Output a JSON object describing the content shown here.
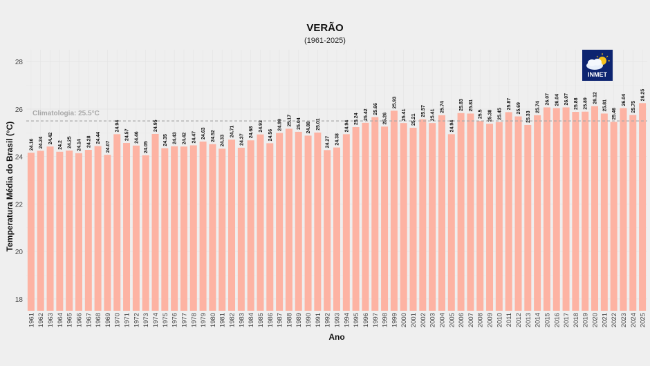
{
  "chart_data": {
    "type": "bar",
    "title": "VERÃO",
    "subtitle": "(1961-2025)",
    "xlabel": "Ano",
    "ylabel": "Temperatura Média do Brasil (°C)",
    "ylim": [
      17.5,
      28.5
    ],
    "yticks": [
      18,
      20,
      22,
      24,
      26,
      28
    ],
    "grid": true,
    "bar_color": "#fdb3a3",
    "reference_line": {
      "value": 25.5,
      "label": "Climatologia: 25.5°C",
      "color": "#a8a8a8"
    },
    "categories": [
      "1961",
      "1962",
      "1963",
      "1964",
      "1965",
      "1966",
      "1967",
      "1968",
      "1969",
      "1970",
      "1971",
      "1972",
      "1973",
      "1974",
      "1975",
      "1976",
      "1977",
      "1978",
      "1979",
      "1980",
      "1981",
      "1982",
      "1983",
      "1984",
      "1985",
      "1986",
      "1987",
      "1988",
      "1989",
      "1990",
      "1991",
      "1992",
      "1993",
      "1994",
      "1995",
      "1996",
      "1997",
      "1998",
      "1999",
      "2000",
      "2001",
      "2002",
      "2003",
      "2004",
      "2005",
      "2006",
      "2007",
      "2008",
      "2009",
      "2010",
      "2011",
      "2012",
      "2013",
      "2014",
      "2015",
      "2016",
      "2017",
      "2018",
      "2019",
      "2020",
      "2021",
      "2022",
      "2023",
      "2024",
      "2025"
    ],
    "values": [
      24.16,
      24.24,
      24.42,
      24.2,
      24.25,
      24.14,
      24.28,
      24.44,
      24.07,
      24.94,
      24.57,
      24.46,
      24.05,
      24.95,
      24.35,
      24.43,
      24.42,
      24.47,
      24.63,
      24.52,
      24.33,
      24.71,
      24.37,
      24.68,
      24.93,
      24.56,
      24.99,
      25.17,
      25.04,
      24.88,
      25.01,
      24.27,
      24.38,
      24.94,
      25.24,
      25.42,
      25.66,
      25.26,
      25.93,
      25.41,
      25.21,
      25.57,
      25.41,
      25.74,
      24.94,
      25.83,
      25.81,
      25.5,
      25.38,
      25.45,
      25.87,
      25.69,
      25.33,
      25.74,
      26.07,
      26.04,
      26.07,
      25.88,
      25.89,
      26.12,
      25.81,
      25.46,
      26.04,
      25.75,
      26.25
    ]
  },
  "logo": {
    "text": "INMET"
  }
}
